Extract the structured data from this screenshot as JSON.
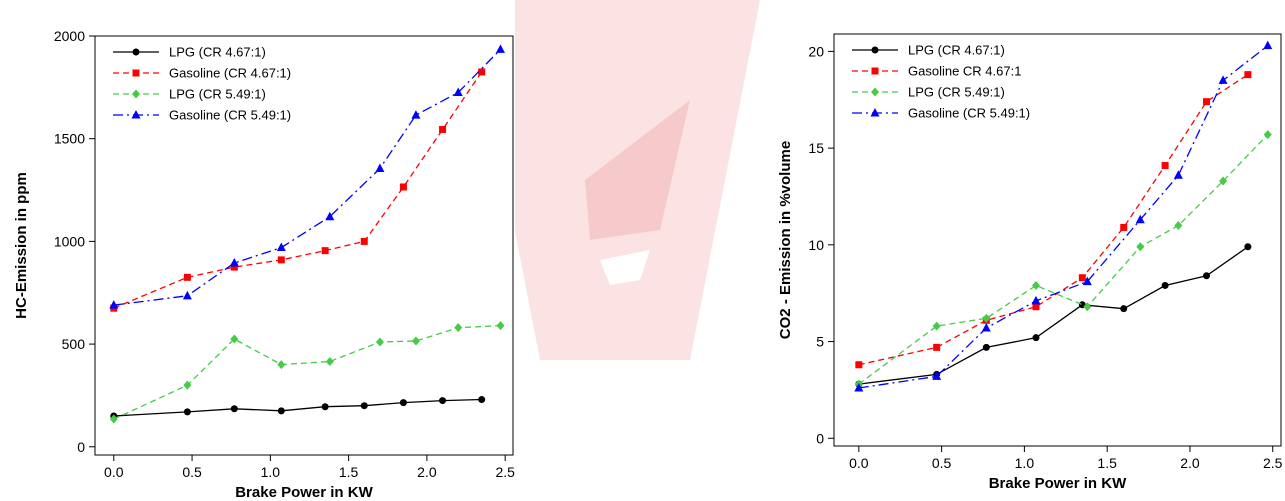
{
  "chart_data": [
    {
      "type": "line",
      "title": "",
      "xlabel": "Brake Power in KW",
      "ylabel": "HC-Emission in ppm",
      "xlim": [
        -0.12,
        2.55
      ],
      "ylim": [
        -40,
        2000
      ],
      "xticks": [
        0.0,
        0.5,
        1.0,
        1.5,
        2.0,
        2.5
      ],
      "xtick_labels": [
        "0.0",
        "0.5",
        "1.0",
        "1.5",
        "2.0",
        "2.5"
      ],
      "yticks": [
        0,
        500,
        1000,
        1500,
        2000
      ],
      "ytick_labels": [
        "0",
        "500",
        "1000",
        "1500",
        "2000"
      ],
      "legend_position": "top-left",
      "series": [
        {
          "name": "LPG (CR 4.67:1)",
          "color": "#000000",
          "dash": "solid",
          "marker": "circle",
          "x": [
            0.0,
            0.47,
            0.77,
            1.07,
            1.35,
            1.6,
            1.85,
            2.1,
            2.35
          ],
          "y": [
            150,
            170,
            185,
            175,
            195,
            200,
            215,
            225,
            230
          ]
        },
        {
          "name": "Gasoline (CR 4.67:1)",
          "color": "#ff0000",
          "dash": "dashed",
          "marker": "square",
          "x": [
            0.0,
            0.47,
            0.77,
            1.07,
            1.35,
            1.6,
            1.85,
            2.1,
            2.35
          ],
          "y": [
            675,
            825,
            875,
            910,
            955,
            1000,
            1265,
            1545,
            1825
          ]
        },
        {
          "name": "LPG (CR 5.49:1)",
          "color": "#44cc44",
          "dash": "dashed",
          "marker": "diamond",
          "x": [
            0.0,
            0.47,
            0.77,
            1.07,
            1.38,
            1.7,
            1.93,
            2.2,
            2.47
          ],
          "y": [
            135,
            300,
            525,
            400,
            415,
            510,
            515,
            580,
            590
          ]
        },
        {
          "name": "Gasoline (CR 5.49:1)",
          "color": "#0000ff",
          "dash": "dashdot",
          "marker": "triangle",
          "x": [
            0.0,
            0.47,
            0.77,
            1.07,
            1.38,
            1.7,
            1.93,
            2.2,
            2.47
          ],
          "y": [
            690,
            735,
            895,
            970,
            1120,
            1355,
            1615,
            1725,
            1935
          ]
        }
      ]
    },
    {
      "type": "line",
      "title": "",
      "xlabel": "Brake Power in KW",
      "ylabel": "CO2 - Emission in %volume",
      "xlim": [
        -0.15,
        2.55
      ],
      "ylim": [
        -0.4,
        20.9
      ],
      "xticks": [
        0.0,
        0.5,
        1.0,
        1.5,
        2.0,
        2.5
      ],
      "xtick_labels": [
        "0.0",
        "0.5",
        "1.0",
        "1.5",
        "2.0",
        "2.5"
      ],
      "yticks": [
        0,
        5,
        10,
        15,
        20
      ],
      "ytick_labels": [
        "0",
        "5",
        "10",
        "15",
        "20"
      ],
      "legend_position": "top-left",
      "series": [
        {
          "name": "LPG (CR 4.67:1)",
          "color": "#000000",
          "dash": "solid",
          "marker": "circle",
          "x": [
            0.0,
            0.47,
            0.77,
            1.07,
            1.35,
            1.6,
            1.85,
            2.1,
            2.35
          ],
          "y": [
            2.8,
            3.3,
            4.7,
            5.2,
            6.9,
            6.7,
            7.9,
            8.4,
            9.9
          ]
        },
        {
          "name": "Gasoline   CR 4.67:1",
          "color": "#ff0000",
          "dash": "dashed",
          "marker": "square",
          "x": [
            0.0,
            0.47,
            0.77,
            1.07,
            1.35,
            1.6,
            1.85,
            2.1,
            2.35
          ],
          "y": [
            3.8,
            4.7,
            6.1,
            6.8,
            8.3,
            10.9,
            14.1,
            17.4,
            18.8
          ]
        },
        {
          "name": "LPG (CR 5.49:1)",
          "color": "#44cc44",
          "dash": "dashed",
          "marker": "diamond",
          "x": [
            0.0,
            0.47,
            0.77,
            1.07,
            1.38,
            1.7,
            1.93,
            2.2,
            2.47
          ],
          "y": [
            2.8,
            5.8,
            6.2,
            7.9,
            6.8,
            9.9,
            11.0,
            13.3,
            15.7
          ]
        },
        {
          "name": "Gasoline (CR 5.49:1)",
          "color": "#0000ff",
          "dash": "dashdot",
          "marker": "triangle",
          "x": [
            0.0,
            0.47,
            0.77,
            1.07,
            1.38,
            1.7,
            1.93,
            2.2,
            2.47
          ],
          "y": [
            2.6,
            3.2,
            5.7,
            7.1,
            8.1,
            11.3,
            13.6,
            18.5,
            20.3
          ]
        }
      ]
    }
  ]
}
